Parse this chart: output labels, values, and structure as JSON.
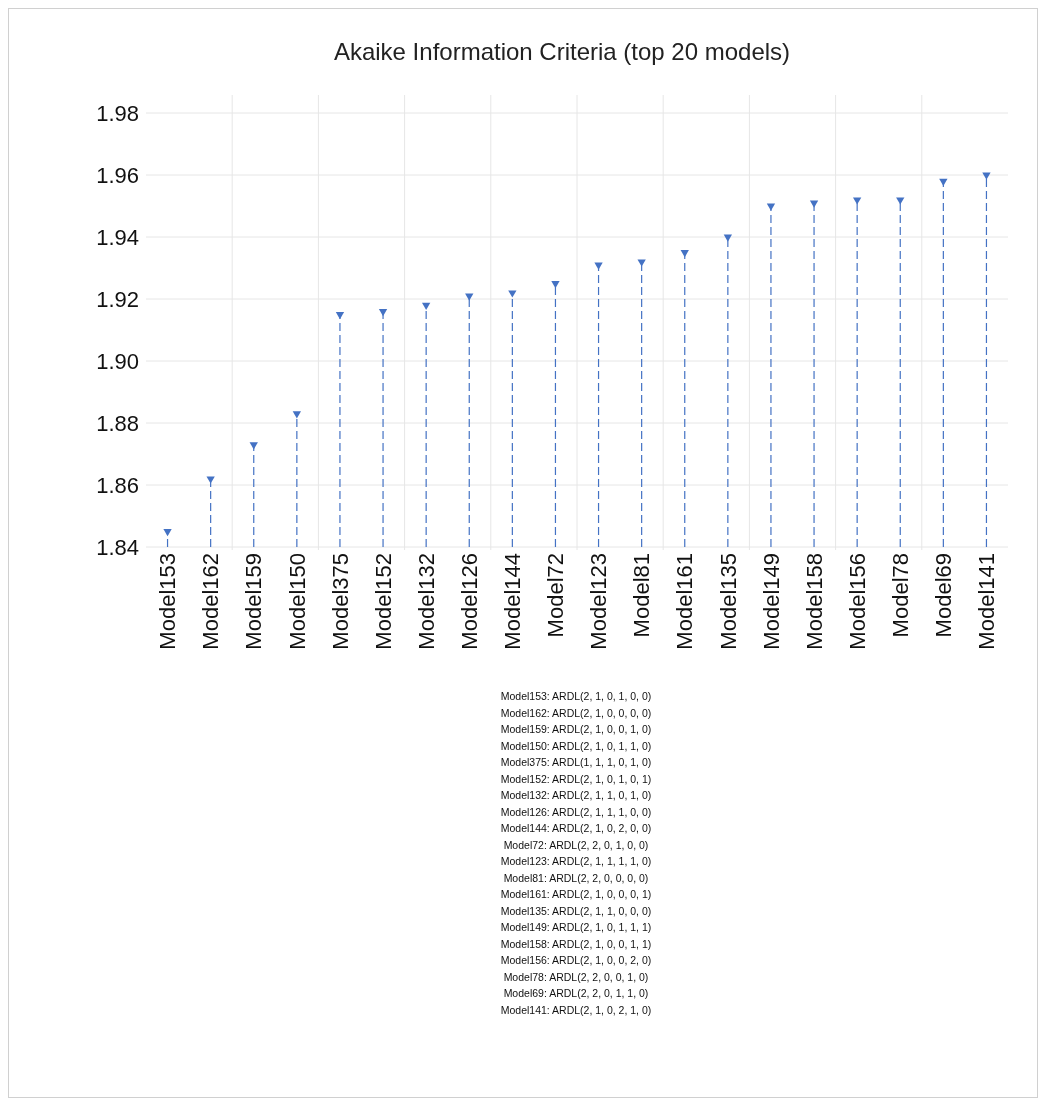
{
  "chart_data": {
    "type": "lollipop",
    "title": "Akaike Information Criteria (top 20 models)",
    "categories": [
      "Model153",
      "Model162",
      "Model159",
      "Model150",
      "Model375",
      "Model152",
      "Model132",
      "Model126",
      "Model144",
      "Model72",
      "Model123",
      "Model81",
      "Model161",
      "Model135",
      "Model149",
      "Model158",
      "Model156",
      "Model78",
      "Model69",
      "Model141"
    ],
    "values": [
      1.845,
      1.862,
      1.873,
      1.883,
      1.915,
      1.916,
      1.918,
      1.921,
      1.922,
      1.925,
      1.931,
      1.932,
      1.935,
      1.94,
      1.95,
      1.951,
      1.952,
      1.952,
      1.958,
      1.96
    ],
    "color": "#4472c4",
    "ylim": [
      1.84,
      1.98
    ],
    "yticks": [
      {
        "value": 1.84,
        "label": "1.84"
      },
      {
        "value": 1.86,
        "label": "1.86"
      },
      {
        "value": 1.88,
        "label": "1.88"
      },
      {
        "value": 1.9,
        "label": "1.90"
      },
      {
        "value": 1.92,
        "label": "1.92"
      },
      {
        "value": 1.94,
        "label": "1.94"
      },
      {
        "value": 1.96,
        "label": "1.96"
      },
      {
        "value": 1.98,
        "label": "1.98"
      }
    ],
    "grid": true,
    "marker": "triangle",
    "line_style": "dashed",
    "annotations": [
      "Model153: ARDL(2, 1, 0, 1, 0, 0)",
      "Model162: ARDL(2, 1, 0, 0, 0, 0)",
      "Model159: ARDL(2, 1, 0, 0, 1, 0)",
      "Model150: ARDL(2, 1, 0, 1, 1, 0)",
      "Model375: ARDL(1, 1, 1, 0, 1, 0)",
      "Model152: ARDL(2, 1, 0, 1, 0, 1)",
      "Model132: ARDL(2, 1, 1, 0, 1, 0)",
      "Model126: ARDL(2, 1, 1, 1, 0, 0)",
      "Model144: ARDL(2, 1, 0, 2, 0, 0)",
      "Model72: ARDL(2, 2, 0, 1, 0, 0)",
      "Model123: ARDL(2, 1, 1, 1, 1, 0)",
      "Model81: ARDL(2, 2, 0, 0, 0, 0)",
      "Model161: ARDL(2, 1, 0, 0, 0, 1)",
      "Model135: ARDL(2, 1, 1, 0, 0, 0)",
      "Model149: ARDL(2, 1, 0, 1, 1, 1)",
      "Model158: ARDL(2, 1, 0, 0, 1, 1)",
      "Model156: ARDL(2, 1, 0, 0, 2, 0)",
      "Model78: ARDL(2, 2, 0, 0, 1, 0)",
      "Model69: ARDL(2, 2, 0, 1, 1, 0)",
      "Model141: ARDL(2, 1, 0, 2, 1, 0)"
    ]
  }
}
